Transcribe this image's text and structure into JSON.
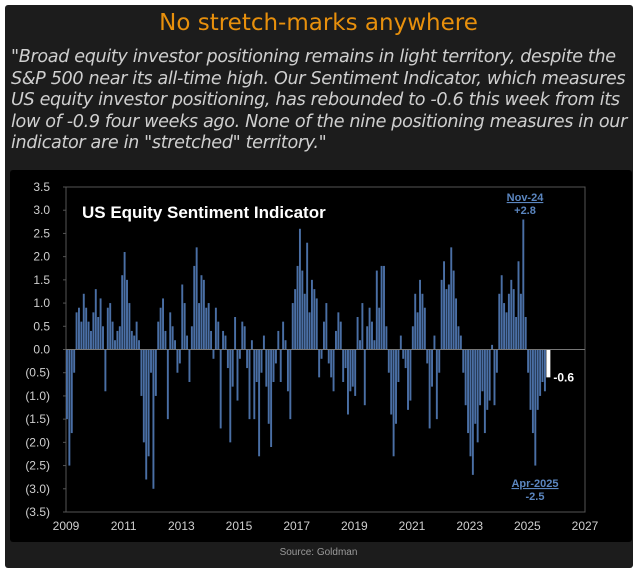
{
  "header": {
    "title": "No stretch-marks anywhere",
    "quote": "\"Broad equity investor positioning remains in light territory, despite the S&P 500 near its all-time high. Our Sentiment Indicator, which measures US equity investor positioning, has rebounded to -0.6 this week from its low of -0.9 four weeks ago. None of the nine positioning measures in our indicator are in \"stretched\" territory.\""
  },
  "source": "Source: Goldman",
  "colors": {
    "title": "#e8900c",
    "bar": "#4a6fa5",
    "latest": "#ffffff",
    "annotation": "#5b86c0"
  },
  "chart_data": {
    "type": "bar",
    "title": "US Equity Sentiment Indicator",
    "xlabel": "",
    "ylabel": "",
    "x_start": 2009.0,
    "x_step_years": 0.0833,
    "xlim": [
      2009,
      2027
    ],
    "ylim": [
      -3.5,
      3.5
    ],
    "x_ticks": [
      "2009",
      "2011",
      "2013",
      "2015",
      "2017",
      "2019",
      "2021",
      "2023",
      "2025",
      "2027"
    ],
    "y_ticks": [
      "3.5",
      "3.0",
      "2.5",
      "2.0",
      "1.5",
      "1.0",
      "0.5",
      "0.0",
      "(0.5)",
      "(1.0)",
      "(1.5)",
      "(2.0)",
      "(2.5)",
      "(3.0)",
      "(3.5)"
    ],
    "values": [
      -1.5,
      -2.5,
      -1.8,
      -0.5,
      0.8,
      0.9,
      0.6,
      1.2,
      0.9,
      0.6,
      0.4,
      0.8,
      1.3,
      0.7,
      1.1,
      0.5,
      -0.9,
      0.9,
      1.0,
      0.6,
      0.2,
      0.4,
      0.5,
      1.6,
      2.1,
      1.5,
      1.0,
      0.4,
      0.3,
      0.6,
      0.2,
      -1.0,
      -2.0,
      -2.8,
      -2.3,
      -0.5,
      -3.0,
      -1.0,
      0.6,
      0.9,
      1.1,
      0.4,
      -1.5,
      0.8,
      0.5,
      0.2,
      -0.5,
      -0.3,
      1.4,
      1.0,
      0.3,
      -0.7,
      0.5,
      1.8,
      2.2,
      1.0,
      1.6,
      1.5,
      0.9,
      1.0,
      0.4,
      -0.2,
      0.9,
      0.6,
      -1.7,
      0.4,
      0.3,
      -0.4,
      -2.0,
      -0.8,
      0.7,
      -1.1,
      -0.2,
      0.6,
      0.5,
      -0.4,
      -1.5,
      0.2,
      -1.5,
      -0.7,
      -2.3,
      -0.5,
      0.3,
      -0.8,
      -1.6,
      -2.1,
      -0.7,
      -0.3,
      0.4,
      -0.7,
      0.6,
      0.2,
      -0.9,
      -1.5,
      1.0,
      1.3,
      1.8,
      2.6,
      1.7,
      1.2,
      2.3,
      0.8,
      1.5,
      1.3,
      1.1,
      -0.6,
      -0.2,
      0.6,
      1.0,
      -0.3,
      -0.6,
      -0.9,
      0.4,
      0.8,
      0.6,
      -0.7,
      -0.4,
      -1.4,
      -0.9,
      -0.8,
      -1.0,
      0.7,
      0.2,
      1.0,
      -1.2,
      0.5,
      0.9,
      0.6,
      0.2,
      1.7,
      0.9,
      1.8,
      1.8,
      0.5,
      -0.5,
      -1.4,
      -2.3,
      -1.6,
      -0.7,
      0.3,
      -0.2,
      -0.4,
      -1.3,
      -1.1,
      0.5,
      1.2,
      0.8,
      1.5,
      1.2,
      0.9,
      -0.3,
      -1.7,
      -0.8,
      0.3,
      -1.5,
      -0.5,
      1.5,
      1.9,
      1.3,
      1.4,
      2.2,
      1.7,
      1.1,
      0.5,
      0.3,
      -0.5,
      -1.2,
      -1.8,
      -2.3,
      -2.7,
      -1.6,
      -2.0,
      -1.2,
      -0.9,
      -1.8,
      -1.3,
      -1.1,
      0.1,
      -1.2,
      -0.5,
      1.2,
      1.6,
      1.0,
      0.8,
      1.2,
      1.5,
      1.3,
      0.7,
      1.9,
      1.2,
      2.8,
      0.7,
      -0.5,
      -1.3,
      -1.8,
      -2.5,
      -1.3,
      -1.0,
      -0.7,
      -0.9,
      -0.6
    ],
    "latest": {
      "value": -0.6,
      "label": "-0.6"
    },
    "annotations": [
      {
        "label": "Nov-24",
        "value_label": "+2.8",
        "x": 2024.83,
        "y": 2.8
      },
      {
        "label": "Apr-2025",
        "value_label": "-2.5",
        "x": 2025.25,
        "y": -2.5
      }
    ]
  }
}
